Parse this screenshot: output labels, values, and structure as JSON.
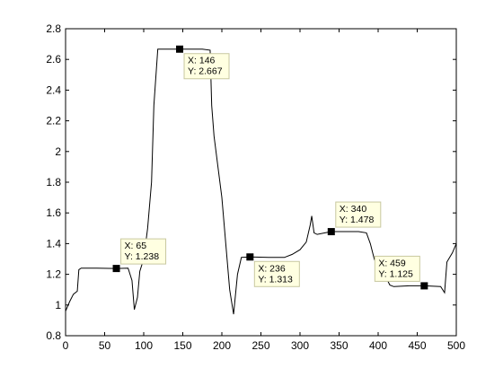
{
  "chart_data": {
    "type": "line",
    "title": "",
    "xlabel": "",
    "ylabel": "",
    "xlim": [
      0,
      500
    ],
    "ylim": [
      0.8,
      2.8
    ],
    "xticks": [
      0,
      50,
      100,
      150,
      200,
      250,
      300,
      350,
      400,
      450,
      500
    ],
    "yticks": [
      0.8,
      1,
      1.2,
      1.4,
      1.6,
      1.8,
      2,
      2.2,
      2.4,
      2.6,
      2.8
    ],
    "grid": false,
    "line_color": "#000000",
    "series": [
      {
        "points": [
          [
            0,
            0.96
          ],
          [
            5,
            1.02
          ],
          [
            10,
            1.07
          ],
          [
            15,
            1.09
          ],
          [
            17,
            1.23
          ],
          [
            20,
            1.24
          ],
          [
            40,
            1.24
          ],
          [
            65,
            1.238
          ],
          [
            80,
            1.24
          ],
          [
            85,
            1.16
          ],
          [
            88,
            0.97
          ],
          [
            92,
            1.05
          ],
          [
            95,
            1.22
          ],
          [
            100,
            1.3
          ],
          [
            105,
            1.5
          ],
          [
            110,
            1.8
          ],
          [
            113,
            2.3
          ],
          [
            118,
            2.667
          ],
          [
            130,
            2.667
          ],
          [
            146,
            2.667
          ],
          [
            160,
            2.667
          ],
          [
            175,
            2.667
          ],
          [
            185,
            2.66
          ],
          [
            187,
            2.3
          ],
          [
            190,
            2.1
          ],
          [
            195,
            1.9
          ],
          [
            200,
            1.7
          ],
          [
            205,
            1.4
          ],
          [
            210,
            1.1
          ],
          [
            215,
            0.94
          ],
          [
            220,
            1.2
          ],
          [
            225,
            1.31
          ],
          [
            236,
            1.313
          ],
          [
            260,
            1.31
          ],
          [
            280,
            1.31
          ],
          [
            290,
            1.33
          ],
          [
            300,
            1.36
          ],
          [
            308,
            1.41
          ],
          [
            313,
            1.52
          ],
          [
            315,
            1.58
          ],
          [
            318,
            1.47
          ],
          [
            322,
            1.46
          ],
          [
            340,
            1.478
          ],
          [
            360,
            1.478
          ],
          [
            375,
            1.478
          ],
          [
            385,
            1.47
          ],
          [
            390,
            1.4
          ],
          [
            395,
            1.3
          ],
          [
            400,
            1.24
          ],
          [
            405,
            1.2
          ],
          [
            410,
            1.18
          ],
          [
            415,
            1.13
          ],
          [
            420,
            1.12
          ],
          [
            440,
            1.125
          ],
          [
            459,
            1.125
          ],
          [
            480,
            1.12
          ],
          [
            485,
            1.08
          ],
          [
            488,
            1.28
          ],
          [
            495,
            1.34
          ],
          [
            500,
            1.4
          ]
        ]
      }
    ],
    "data_tips": [
      {
        "x": 65,
        "y": 1.238,
        "x_text": "X: 65",
        "y_text": "Y: 1.238",
        "box_side": "above-right"
      },
      {
        "x": 146,
        "y": 2.667,
        "x_text": "X: 146",
        "y_text": "Y: 2.667",
        "box_side": "below-right"
      },
      {
        "x": 236,
        "y": 1.313,
        "x_text": "X: 236",
        "y_text": "Y: 1.313",
        "box_side": "below-right"
      },
      {
        "x": 340,
        "y": 1.478,
        "x_text": "X: 340",
        "y_text": "Y: 1.478",
        "box_side": "above-right"
      },
      {
        "x": 459,
        "y": 1.125,
        "x_text": "X: 459",
        "y_text": "Y: 1.125",
        "box_side": "above-left"
      }
    ],
    "tip_box_fill": "#ffffe1",
    "tip_box_border": "#c8c8a0"
  }
}
